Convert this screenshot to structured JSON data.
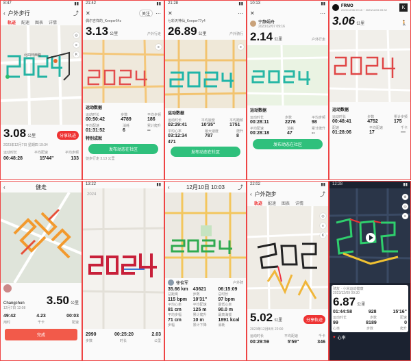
{
  "p1": {
    "status_time": "8:47",
    "title": "户外步行",
    "tabs": [
      "轨迹",
      "配速",
      "图表",
      "详情"
    ],
    "map_label": "北四环西路",
    "distance": "3.08",
    "distance_unit": "公里",
    "date": "2023年12月7日 星期四 19:34",
    "share_label": "分享轨迹",
    "stats_labels": [
      "运动时长",
      "平均配速",
      "平均步频"
    ],
    "stats": [
      "00:48:28",
      "15'44\"",
      "133"
    ],
    "stat_unit": "步/分"
  },
  "p2": {
    "status_time": "21:42",
    "user": "偶尔吉祥的_Keeper64z",
    "follow": "关注",
    "distance": "3.13",
    "distance_unit": "公里",
    "mode": "户外行走",
    "section": "运动数据",
    "labels": [
      "运动时长",
      "步数",
      "平均步频",
      "平均配速",
      "消耗",
      "累计爬升"
    ],
    "values": [
      "00:50:42",
      "4789",
      "186",
      "01:31:52",
      "6",
      "--"
    ],
    "units": [
      "",
      "",
      "步/分",
      "",
      "米",
      ""
    ],
    "section2": "特别成就",
    "button": "发布动态在社区",
    "footer": "徒步行走 3.13 公里"
  },
  "p3": {
    "status_time": "21:28",
    "user": "七彩天神仙_Keeper77y4",
    "distance": "26.89",
    "distance_unit": "公里",
    "mode": "户外骑行",
    "section": "运动数据",
    "labels": [
      "运动时长",
      "平均速度",
      "平均踏频",
      "平均心率",
      "最大速度",
      "爬升"
    ],
    "values": [
      "02:29:41",
      "10'35\"",
      "1751",
      "03:12:34",
      "787",
      "8"
    ],
    "extra": "471",
    "button": "发布动态在社区"
  },
  "p4": {
    "status_time": "10:13",
    "user": "宁静娟舟",
    "date": "2023/12/07 09:16",
    "distance": "2.14",
    "distance_unit": "公里",
    "mode": "户外行走",
    "section": "运动数据",
    "labels": [
      "运动时长",
      "步数",
      "平均步频",
      "平均配速",
      "消耗",
      "累计爬升"
    ],
    "values": [
      "00:28:11",
      "2276",
      "98",
      "00:28:18",
      "47",
      "--"
    ],
    "button": "发布动态在社区"
  },
  "p5": {
    "device": "FRMO",
    "date": "2023/12/06 09:15 ~ 2023/12/06 09:32",
    "distance": "3.06",
    "distance_unit": "公里",
    "section": "运动数据",
    "labels": [
      "运动时长",
      "步数",
      "累计步频",
      "配速",
      "平均配速",
      "千卡"
    ],
    "values": [
      "00:48:41",
      "4752",
      "175",
      "01:28:06",
      "17",
      "—"
    ]
  },
  "p6": {
    "title": "健走",
    "user": "Changchun",
    "date": "12月7日 12:08",
    "distance": "3.50",
    "distance_unit": "公里",
    "stats": [
      "49:42",
      "4.23",
      "00:03"
    ],
    "stats_labels": [
      "用时",
      "千卡",
      "配速"
    ],
    "button": "完成"
  },
  "p7": {
    "status_time": "13:22",
    "route_label": "2024",
    "stats": [
      "2990",
      "00:25:20",
      "2.03"
    ],
    "stats_labels": [
      "步数",
      "时长",
      "公里"
    ]
  },
  "p8": {
    "header": "12月10日 10:03",
    "user": "徐俊军",
    "mode": "户外骑",
    "values": [
      "35.66 km",
      "43621",
      "06:15:09",
      "115 bpm",
      "10'31\"",
      "97 bpm",
      "81 cm",
      "125 m",
      "90.0 m",
      "71 cm",
      "10 m",
      "1891 kcal"
    ],
    "labels": [
      "总距离",
      "步数",
      "总时长",
      "平均心率",
      "平均配速",
      "最低心率",
      "平均步幅",
      "累计爬升",
      "最高海拔",
      "步幅",
      "累计下降",
      "消耗"
    ]
  },
  "p9": {
    "status_time": "22:02",
    "title": "户外跑步",
    "tabs": [
      "轨迹",
      "配速",
      "图表",
      "详情"
    ],
    "distance": "5.02",
    "distance_unit": "公里",
    "date": "2023年12月8日 22:00",
    "share_label": "分享轨迹",
    "stats": [
      "00:29:59",
      "5'59\"",
      "346"
    ],
    "stats_labels": [
      "运动时长",
      "平均配速",
      "千卡"
    ]
  },
  "p10": {
    "status_time": "12:28",
    "user": "骑友 · 小米运动健康",
    "date": "2023/12/09 09:30",
    "distance": "6.87",
    "distance_unit": "公里",
    "labels": [
      "运动时长",
      "步数",
      "配速"
    ],
    "values": [
      "01:44:58",
      "928",
      "15'16\""
    ],
    "values2": [
      "99",
      "8189",
      "0"
    ],
    "labels2": [
      "心率",
      "步数",
      "爬升"
    ],
    "bottom": "心率"
  },
  "colors": {
    "border": "#e44444",
    "teal": "#2fb9a6",
    "green": "#29c07a",
    "red": "#e23a3a",
    "orange": "#f29a2e",
    "dark": "#1b2230"
  },
  "icons": [
    "back-arrow-icon",
    "share-icon",
    "close-icon",
    "more-icon",
    "location-icon",
    "layers-icon",
    "play-icon",
    "heart-icon"
  ]
}
